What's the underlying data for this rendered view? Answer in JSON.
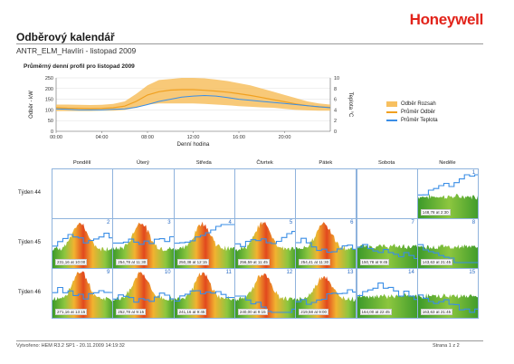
{
  "header": {
    "logo": "Honeywell",
    "title": "Odběrový kalendář",
    "subtitle": "ANTR_ELM_Havlíri - listopad 2009"
  },
  "colors": {
    "logo": "#e2231a",
    "range": "#f7c060",
    "consumption": "#f0a020",
    "temperature": "#3a8ee6",
    "cell_border": "#8fb3dd",
    "cell_number": "#2b6cc4"
  },
  "chart_data": [
    {
      "type": "area",
      "title": "Průměrný denní profil pro listopad 2009",
      "xlabel": "Denní hodina",
      "ylabel": "Odběr - kW",
      "ylabel_right": "Teplota °C",
      "x_ticks": [
        "00:00",
        "04:00",
        "08:00",
        "12:00",
        "16:00",
        "20:00"
      ],
      "ylim": [
        0,
        250
      ],
      "y_ticks": [
        0,
        50,
        100,
        150,
        200,
        250
      ],
      "ylim_right": [
        0,
        10
      ],
      "y_ticks_right": [
        0,
        2,
        4,
        6,
        8,
        10
      ],
      "x_hours": [
        0,
        1,
        2,
        3,
        4,
        5,
        6,
        7,
        8,
        9,
        10,
        11,
        12,
        13,
        14,
        15,
        16,
        17,
        18,
        19,
        20,
        21,
        22,
        23,
        24
      ],
      "series": [
        {
          "name": "Odběr Rozsah",
          "kind": "band",
          "low": [
            95,
            95,
            95,
            95,
            96,
            96,
            100,
            110,
            125,
            130,
            130,
            130,
            130,
            128,
            125,
            122,
            118,
            115,
            112,
            110,
            105,
            100,
            98,
            96,
            96
          ],
          "high": [
            125,
            125,
            124,
            123,
            124,
            128,
            140,
            175,
            215,
            240,
            245,
            250,
            250,
            248,
            242,
            235,
            225,
            215,
            200,
            185,
            170,
            155,
            140,
            130,
            125
          ]
        },
        {
          "name": "Průměr Odběr",
          "kind": "line",
          "values": [
            110,
            108,
            107,
            106,
            107,
            110,
            118,
            140,
            170,
            185,
            193,
            195,
            195,
            192,
            188,
            183,
            176,
            168,
            158,
            148,
            138,
            128,
            120,
            114,
            112
          ]
        },
        {
          "name": "Průměr Teplota",
          "kind": "line",
          "axis": "right",
          "values": [
            4.2,
            4.1,
            4.0,
            4.0,
            4.0,
            4.1,
            4.2,
            4.5,
            5.0,
            5.6,
            6.0,
            6.4,
            6.6,
            6.7,
            6.6,
            6.3,
            6.0,
            5.8,
            5.6,
            5.4,
            5.2,
            5.0,
            4.8,
            4.6,
            4.4
          ]
        }
      ],
      "legend": "right"
    },
    {
      "type": "heatmap",
      "columns": [
        "Pondělí",
        "Úterý",
        "Středa",
        "Čtvrtek",
        "Pátek",
        "Sobota",
        "Neděle"
      ],
      "rows": [
        {
          "label": "Týden 44",
          "cells": [
            null,
            null,
            null,
            null,
            null,
            null,
            {
              "day": "1",
              "peak": "148,78 at 2:30",
              "level": 0.55
            }
          ]
        },
        {
          "label": "Týden 45",
          "cells": [
            {
              "day": "2",
              "peak": "231,16 at 10:00",
              "level": 0.9
            },
            {
              "day": "3",
              "peak": "254,78 at 11:30",
              "level": 0.95
            },
            {
              "day": "4",
              "peak": "250,38 at 12:15",
              "level": 0.93
            },
            {
              "day": "5",
              "peak": "256,59 at 11:45",
              "level": 0.95
            },
            {
              "day": "6",
              "peak": "254,41 at 11:30",
              "level": 0.94
            },
            {
              "day": "7",
              "peak": "150,78 at 9:45",
              "level": 0.55
            },
            {
              "day": "8",
              "peak": "143,63 at 21:45",
              "level": 0.5
            }
          ]
        },
        {
          "label": "Týden 46",
          "cells": [
            {
              "day": "9",
              "peak": "271,16 at 13:15",
              "level": 1.0
            },
            {
              "day": "10",
              "peak": "252,78 at 9:15",
              "level": 0.94
            },
            {
              "day": "11",
              "peak": "241,16 at 9:45",
              "level": 0.9
            },
            {
              "day": "12",
              "peak": "240,00 at 9:15",
              "level": 0.9
            },
            {
              "day": "13",
              "peak": "219,58 at 9:00",
              "level": 0.82
            },
            {
              "day": "14",
              "peak": "164,00 at 22:45",
              "level": 0.6
            },
            {
              "day": "15",
              "peak": "163,63 at 21:45",
              "level": 0.6
            }
          ]
        }
      ]
    }
  ],
  "footer": {
    "left": "Vytvořeno: HEM R3.2 SP1 - 20.11.2009 14:19:32",
    "right": "Strana 1 z 2"
  }
}
